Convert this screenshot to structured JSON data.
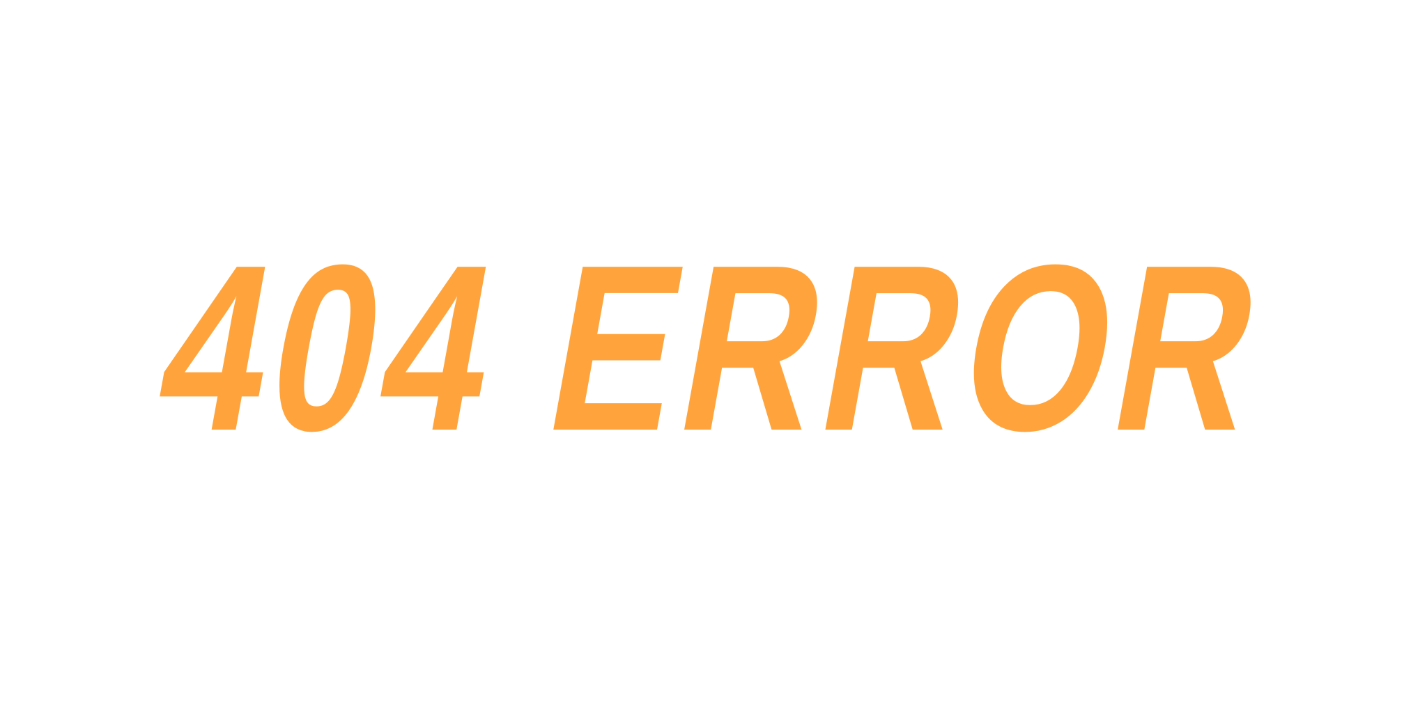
{
  "error": {
    "text": "404 ERROR",
    "color": "#FFA43C"
  },
  "background": {
    "color": "#FFFFFF"
  }
}
